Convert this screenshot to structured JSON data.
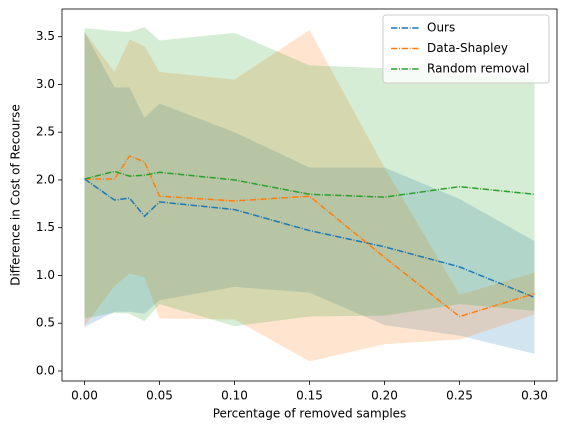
{
  "chart_data": {
    "type": "line",
    "x_label": "Percentage of removed samples",
    "y_label": "Difference in Cost of Recourse",
    "x": [
      0,
      0.02,
      0.03,
      0.04,
      0.05,
      0.1,
      0.15,
      0.2,
      0.25,
      0.3
    ],
    "series": [
      {
        "name": "Ours",
        "color": "#1f77b4",
        "values": [
          2.01,
          1.79,
          1.81,
          1.62,
          1.77,
          1.69,
          1.47,
          1.3,
          1.09,
          0.77
        ],
        "upper": [
          3.55,
          2.97,
          2.97,
          2.65,
          2.8,
          2.5,
          2.13,
          2.13,
          1.8,
          1.36
        ],
        "lower": [
          0.46,
          0.62,
          0.62,
          0.6,
          0.74,
          0.88,
          0.82,
          0.48,
          0.37,
          0.18
        ]
      },
      {
        "name": "Data-Shapley",
        "color": "#ff7f0e",
        "values": [
          2.01,
          2.01,
          2.25,
          2.19,
          1.83,
          1.78,
          1.83,
          1.19,
          0.57,
          0.81
        ],
        "upper": [
          3.55,
          3.13,
          3.47,
          3.4,
          3.13,
          3.05,
          3.57,
          2.13,
          0.8,
          1.03
        ],
        "lower": [
          0.47,
          0.89,
          1.02,
          0.98,
          0.55,
          0.54,
          0.1,
          0.28,
          0.33,
          0.59
        ]
      },
      {
        "name": "Random removal",
        "color": "#2ca02c",
        "values": [
          2.01,
          2.09,
          2.04,
          2.05,
          2.08,
          2.0,
          1.85,
          1.82,
          1.93,
          1.85
        ],
        "upper": [
          3.59,
          3.56,
          3.55,
          3.6,
          3.46,
          3.54,
          3.2,
          3.17,
          3.1,
          3.05
        ],
        "lower": [
          0.55,
          0.61,
          0.6,
          0.52,
          0.7,
          0.47,
          0.57,
          0.58,
          0.7,
          0.63
        ]
      }
    ],
    "xlim": [
      -0.015,
      0.315
    ],
    "ylim": [
      -0.105,
      3.79
    ],
    "xticks": [
      {
        "value": 0,
        "label": "0.00"
      },
      {
        "value": 0.05,
        "label": "0.05"
      },
      {
        "value": 0.1,
        "label": "0.10"
      },
      {
        "value": 0.15,
        "label": "0.15"
      },
      {
        "value": 0.2,
        "label": "0.20"
      },
      {
        "value": 0.25,
        "label": "0.25"
      },
      {
        "value": 0.3,
        "label": "0.30"
      }
    ],
    "yticks": [
      {
        "value": 0,
        "label": "0.0"
      },
      {
        "value": 0.5,
        "label": "0.5"
      },
      {
        "value": 1,
        "label": "1.0"
      },
      {
        "value": 1.5,
        "label": "1.5"
      },
      {
        "value": 2,
        "label": "2.0"
      },
      {
        "value": 2.5,
        "label": "2.5"
      },
      {
        "value": 3,
        "label": "3.0"
      },
      {
        "value": 3.5,
        "label": "3.5"
      }
    ],
    "band_opacity": 0.2,
    "legend": "upper right"
  }
}
